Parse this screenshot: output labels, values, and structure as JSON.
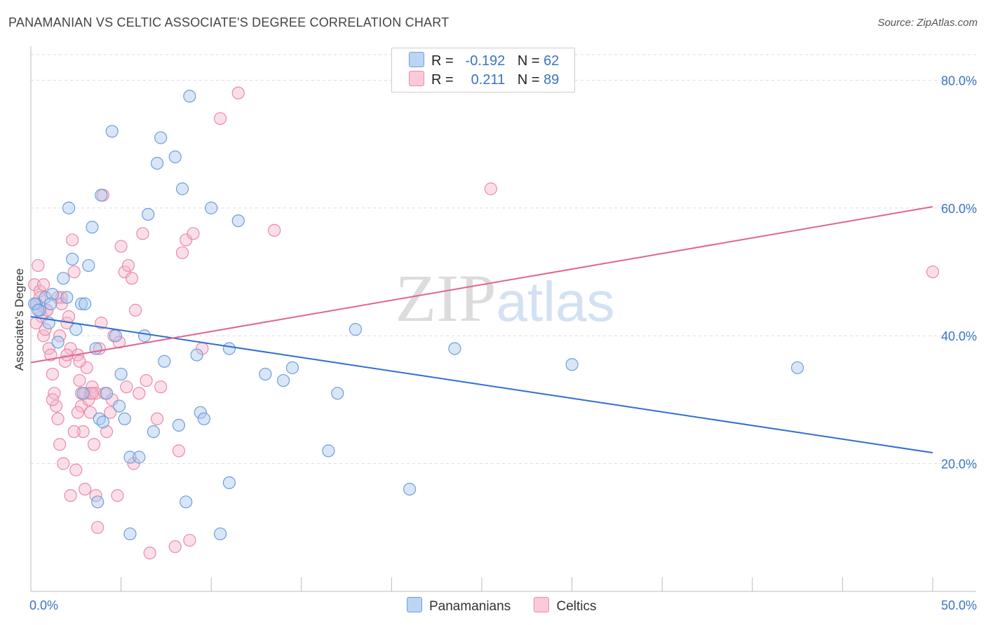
{
  "title": "PANAMANIAN VS CELTIC ASSOCIATE'S DEGREE CORRELATION CHART",
  "source": "Source: ZipAtlas.com",
  "watermark": "ZIPatlas",
  "legend": {
    "rows": [
      {
        "r_label": "R =",
        "r_value": "-0.192",
        "n_label": "N =",
        "n_value": "62"
      },
      {
        "r_label": "R =",
        "r_value": "0.211",
        "n_label": "N =",
        "n_value": "89"
      }
    ]
  },
  "bottom_legend": [
    "Panamanians",
    "Celtics"
  ],
  "colors": {
    "blue_fill": "#aac8ef",
    "blue_stroke": "#6d9fd8",
    "blue_line": "#2f6fd0",
    "pink_fill": "#f6b8cb",
    "pink_stroke": "#e98aa8",
    "pink_line": "#e0648f",
    "tick_label": "#3a73c4",
    "grid": "#dcdcdc"
  },
  "chart_data": {
    "type": "scatter",
    "title": "PANAMANIAN VS CELTIC ASSOCIATE'S DEGREE CORRELATION CHART",
    "xlabel": "",
    "ylabel": "Associate's Degree",
    "xlim": [
      0,
      50
    ],
    "ylim": [
      0,
      84
    ],
    "x_tick_labels": [
      "0.0%",
      "50.0%"
    ],
    "y_ticks": [
      20,
      40,
      60,
      80
    ],
    "y_tick_labels": [
      "20.0%",
      "40.0%",
      "60.0%",
      "80.0%"
    ],
    "grid": true,
    "series": [
      {
        "name": "Panamanians",
        "r": -0.192,
        "n": 62,
        "trend": [
          [
            0,
            43.0
          ],
          [
            50,
            21.7
          ]
        ],
        "points": [
          [
            0.3,
            45
          ],
          [
            0.5,
            44
          ],
          [
            0.8,
            46
          ],
          [
            1.0,
            42
          ],
          [
            1.2,
            46.5
          ],
          [
            1.5,
            39
          ],
          [
            1.8,
            49
          ],
          [
            2.0,
            46
          ],
          [
            2.1,
            60
          ],
          [
            2.3,
            52
          ],
          [
            2.5,
            41
          ],
          [
            2.8,
            45
          ],
          [
            2.9,
            31
          ],
          [
            3.0,
            45
          ],
          [
            3.2,
            51
          ],
          [
            3.4,
            57
          ],
          [
            3.6,
            38
          ],
          [
            3.8,
            27
          ],
          [
            3.9,
            62
          ],
          [
            4.0,
            26.5
          ],
          [
            4.2,
            31
          ],
          [
            4.5,
            72
          ],
          [
            4.7,
            40
          ],
          [
            4.9,
            29
          ],
          [
            5.0,
            34
          ],
          [
            5.2,
            27
          ],
          [
            5.5,
            21
          ],
          [
            6.0,
            21
          ],
          [
            6.3,
            40
          ],
          [
            6.5,
            59
          ],
          [
            6.8,
            25
          ],
          [
            7.0,
            67
          ],
          [
            7.2,
            71
          ],
          [
            7.4,
            36
          ],
          [
            8.0,
            68
          ],
          [
            8.2,
            26
          ],
          [
            8.4,
            63
          ],
          [
            8.6,
            14
          ],
          [
            8.8,
            77.5
          ],
          [
            9.2,
            37
          ],
          [
            9.4,
            28
          ],
          [
            9.6,
            27
          ],
          [
            10.0,
            60
          ],
          [
            10.5,
            9
          ],
          [
            11.0,
            38
          ],
          [
            11.0,
            17
          ],
          [
            11.5,
            58
          ],
          [
            13.0,
            34
          ],
          [
            14.0,
            33
          ],
          [
            14.5,
            35
          ],
          [
            16.5,
            22
          ],
          [
            17.0,
            31
          ],
          [
            18.0,
            41
          ],
          [
            21.0,
            16
          ],
          [
            23.5,
            38
          ],
          [
            30.0,
            35.5
          ],
          [
            42.5,
            35
          ],
          [
            0.2,
            45
          ],
          [
            0.4,
            44
          ],
          [
            1.1,
            45
          ],
          [
            3.7,
            14
          ],
          [
            5.5,
            9
          ]
        ]
      },
      {
        "name": "Celtics",
        "r": 0.211,
        "n": 89,
        "trend": [
          [
            0,
            35.8
          ],
          [
            50,
            60.2
          ]
        ],
        "points": [
          [
            0.2,
            48
          ],
          [
            0.3,
            45
          ],
          [
            0.4,
            51
          ],
          [
            0.5,
            47
          ],
          [
            0.6,
            43
          ],
          [
            0.7,
            40
          ],
          [
            0.8,
            41
          ],
          [
            0.9,
            44
          ],
          [
            1.0,
            38
          ],
          [
            1.1,
            37
          ],
          [
            1.2,
            34
          ],
          [
            1.3,
            31
          ],
          [
            1.4,
            29
          ],
          [
            1.5,
            27
          ],
          [
            1.6,
            23
          ],
          [
            1.7,
            46
          ],
          [
            1.8,
            20
          ],
          [
            1.9,
            36
          ],
          [
            2.0,
            42
          ],
          [
            2.1,
            43
          ],
          [
            2.2,
            38
          ],
          [
            2.3,
            55
          ],
          [
            2.4,
            50
          ],
          [
            2.5,
            19
          ],
          [
            2.6,
            37
          ],
          [
            2.7,
            33
          ],
          [
            2.8,
            29
          ],
          [
            2.9,
            25
          ],
          [
            3.0,
            31
          ],
          [
            3.1,
            35
          ],
          [
            3.2,
            30
          ],
          [
            3.3,
            28
          ],
          [
            3.4,
            32
          ],
          [
            3.5,
            23
          ],
          [
            3.6,
            15
          ],
          [
            3.7,
            10
          ],
          [
            3.8,
            38
          ],
          [
            3.9,
            42
          ],
          [
            4.0,
            62
          ],
          [
            4.2,
            25
          ],
          [
            4.4,
            28
          ],
          [
            4.6,
            40
          ],
          [
            4.8,
            15
          ],
          [
            5.0,
            54
          ],
          [
            5.2,
            50
          ],
          [
            5.4,
            51
          ],
          [
            5.6,
            49
          ],
          [
            5.8,
            44
          ],
          [
            6.0,
            31
          ],
          [
            6.2,
            56
          ],
          [
            6.4,
            33
          ],
          [
            6.6,
            6
          ],
          [
            7.0,
            27
          ],
          [
            7.2,
            32
          ],
          [
            8.0,
            7
          ],
          [
            8.2,
            22
          ],
          [
            8.4,
            53
          ],
          [
            8.6,
            55
          ],
          [
            8.8,
            8
          ],
          [
            9.0,
            56
          ],
          [
            9.5,
            38
          ],
          [
            10.5,
            74
          ],
          [
            11.5,
            78
          ],
          [
            13.5,
            56.5
          ],
          [
            25.5,
            63
          ],
          [
            50.0,
            50
          ],
          [
            0.3,
            42
          ],
          [
            0.5,
            46
          ],
          [
            0.7,
            48
          ],
          [
            0.9,
            44
          ],
          [
            1.5,
            46
          ],
          [
            1.7,
            45
          ],
          [
            2.0,
            37
          ],
          [
            2.4,
            25
          ],
          [
            2.6,
            28
          ],
          [
            2.8,
            31
          ],
          [
            3.0,
            16
          ],
          [
            3.3,
            31
          ],
          [
            3.6,
            31
          ],
          [
            4.1,
            31
          ],
          [
            4.5,
            30
          ],
          [
            4.9,
            39
          ],
          [
            5.3,
            32
          ],
          [
            5.7,
            20
          ],
          [
            1.2,
            30
          ],
          [
            1.6,
            40
          ],
          [
            2.2,
            15
          ],
          [
            3.4,
            31
          ],
          [
            2.7,
            36
          ]
        ]
      }
    ]
  }
}
